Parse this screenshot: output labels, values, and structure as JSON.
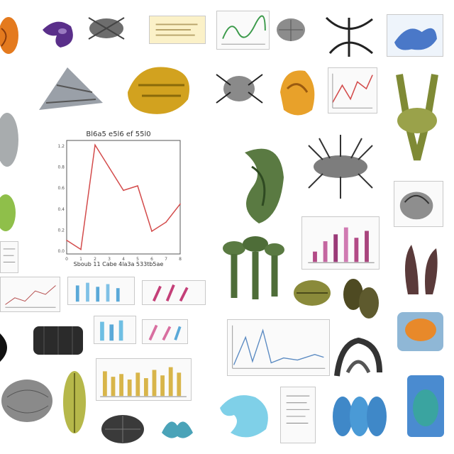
{
  "canvas": {
    "background": "#ffffff"
  },
  "palette": {
    "olive": "#7f8a35",
    "gold": "#d2a21f",
    "teal_blue": "#5aa9d8",
    "orange": "#e47a1e",
    "purple": "#5a2f8a",
    "magenta": "#b24a86",
    "grey_sketch": "#7d7d7d",
    "chart_line": "#d34b4b"
  },
  "center_chart": {
    "title": "Bl6a5 e5l6 ef 55l0",
    "xlabel": "Sboub 11 Cabe 4la3a 533tb5ae",
    "ytick_labels": [
      "1.2",
      "0.8",
      "0.6",
      "0.4",
      "0.2",
      "0.0"
    ],
    "xtick_labels": [
      "0",
      "1",
      "2",
      "3",
      "4",
      "5",
      "6",
      "7",
      "8"
    ]
  },
  "chart_data": {
    "type": "line",
    "title": "Bl6a5 e5l6 ef 55l0",
    "xlabel": "Sboub 11 Cabe 4la3a 533tb5ae",
    "ylabel": "",
    "x": [
      0,
      1,
      2,
      3,
      4,
      5,
      6,
      7,
      8
    ],
    "series": [
      {
        "values": [
          0.15,
          0.05,
          1.2,
          0.95,
          0.7,
          0.75,
          0.25,
          0.35,
          0.55
        ]
      }
    ],
    "ylim": [
      0,
      1.25
    ],
    "xlim": [
      0,
      8
    ],
    "grid": false
  }
}
